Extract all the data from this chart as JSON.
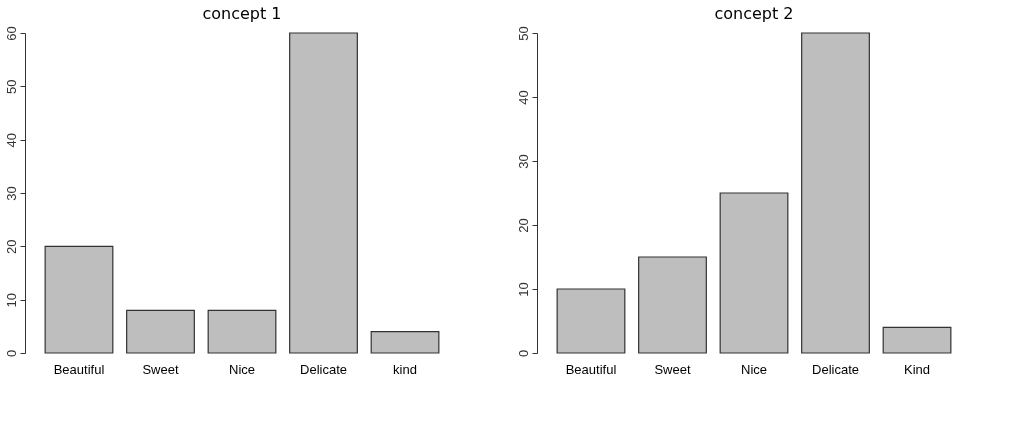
{
  "chart_data": [
    {
      "type": "bar",
      "title": "concept 1",
      "categories": [
        "Beautiful",
        "Sweet",
        "Nice",
        "Delicate",
        "kind"
      ],
      "values": [
        20,
        8,
        8,
        60,
        4
      ],
      "color": "#bebebe",
      "ylim": [
        0,
        60
      ],
      "yticks": [
        0,
        10,
        20,
        30,
        40,
        50,
        60
      ],
      "grid": false
    },
    {
      "type": "bar",
      "title": "concept 2",
      "categories": [
        "Beautiful",
        "Sweet",
        "Nice",
        "Delicate",
        "Kind"
      ],
      "values": [
        10,
        15,
        25,
        50,
        4
      ],
      "color": "#bebebe",
      "ylim": [
        0,
        50
      ],
      "yticks": [
        0,
        10,
        20,
        30,
        40,
        50
      ],
      "grid": false
    }
  ]
}
